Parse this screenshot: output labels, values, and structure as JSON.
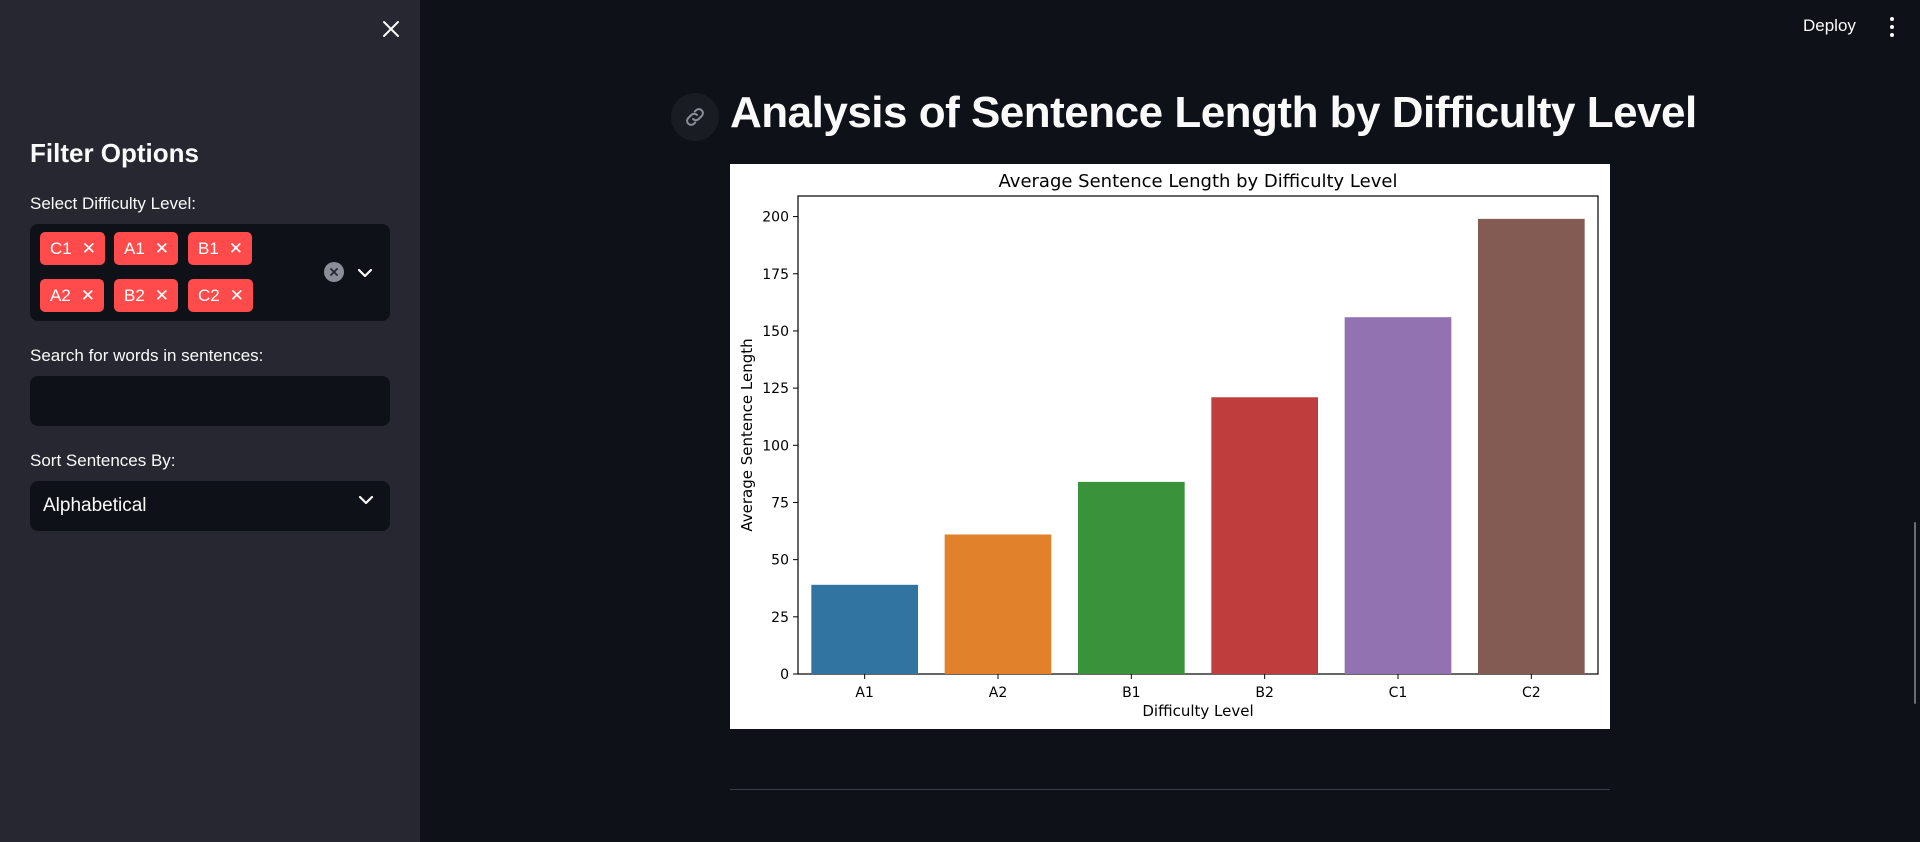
{
  "sidebar": {
    "title": "Filter Options",
    "difficulty": {
      "label": "Select Difficulty Level:",
      "selected": [
        "C1",
        "A1",
        "B1",
        "A2",
        "B2",
        "C2"
      ]
    },
    "search": {
      "label": "Search for words in sentences:",
      "value": "",
      "placeholder": ""
    },
    "sort": {
      "label": "Sort Sentences By:",
      "value": "Alphabetical"
    }
  },
  "header": {
    "deploy_label": "Deploy"
  },
  "main": {
    "title": "Analysis of Sentence Length by Difficulty Level"
  },
  "icons": {
    "close": "close-icon",
    "clear": "clear-all-icon",
    "chevron": "chevron-down-icon",
    "link": "link-icon",
    "menu": "vertical-dots-menu-icon"
  },
  "colors": {
    "accent": "#ff4b4b",
    "background": "#0e1117",
    "sidebar": "#262730"
  },
  "chart_data": {
    "type": "bar",
    "title": "Average Sentence Length by Difficulty Level",
    "xlabel": "Difficulty Level",
    "ylabel": "Average Sentence Length",
    "categories": [
      "A1",
      "A2",
      "B1",
      "B2",
      "C1",
      "C2"
    ],
    "values": [
      39,
      61,
      84,
      121,
      156,
      199
    ],
    "colors": [
      "#3274a1",
      "#e1812c",
      "#3a923a",
      "#c03d3e",
      "#9372b2",
      "#845b53"
    ],
    "ylim": [
      0,
      209
    ],
    "yticks": [
      0,
      25,
      50,
      75,
      100,
      125,
      150,
      175,
      200
    ],
    "grid": false,
    "legend": "none"
  }
}
